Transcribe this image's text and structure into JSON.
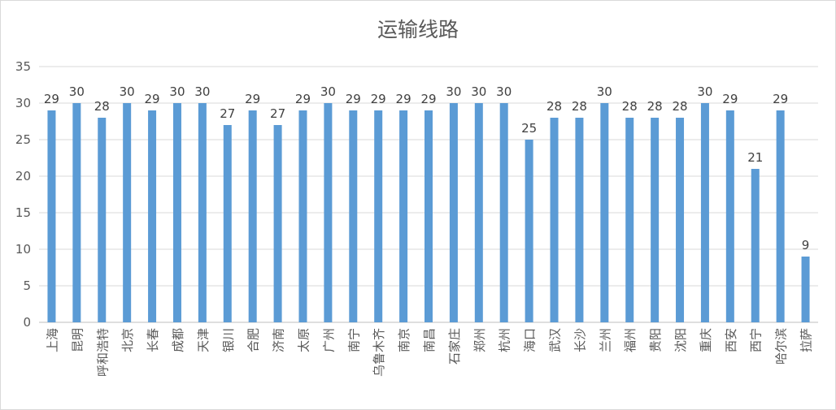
{
  "chart_data": {
    "type": "bar",
    "title": "运输线路",
    "xlabel": "",
    "ylabel": "",
    "ylim": [
      0,
      35
    ],
    "yticks": [
      0,
      5,
      10,
      15,
      20,
      25,
      30,
      35
    ],
    "grid": true,
    "data_labels": true,
    "bar_color": "#5b9bd5",
    "categories": [
      "上海",
      "昆明",
      "呼和浩特",
      "北京",
      "长春",
      "成都",
      "天津",
      "银川",
      "合肥",
      "济南",
      "太原",
      "广州",
      "南宁",
      "乌鲁木齐",
      "南京",
      "南昌",
      "石家庄",
      "郑州",
      "杭州",
      "海口",
      "武汉",
      "长沙",
      "兰州",
      "福州",
      "贵阳",
      "沈阳",
      "重庆",
      "西安",
      "西宁",
      "哈尔滨",
      "拉萨"
    ],
    "values": [
      29,
      30,
      28,
      30,
      29,
      30,
      30,
      27,
      29,
      27,
      29,
      30,
      29,
      29,
      29,
      29,
      30,
      30,
      30,
      25,
      28,
      28,
      30,
      28,
      28,
      28,
      30,
      29,
      21,
      29,
      9
    ]
  }
}
